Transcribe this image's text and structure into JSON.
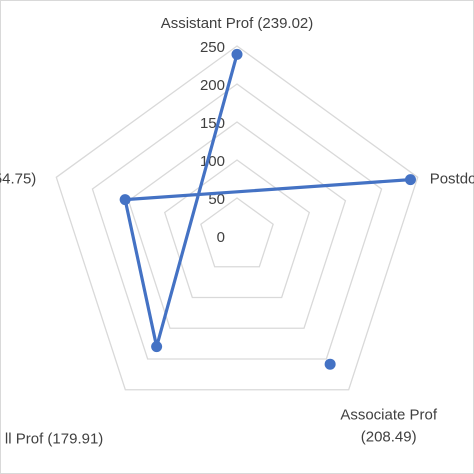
{
  "chart_data": {
    "type": "radar",
    "axes": [
      {
        "label": "Assistant Prof (239.02)",
        "value": 239.02
      },
      {
        "label": "Postdo",
        "value": 240
      },
      {
        "label": "Associate Prof (208.49)",
        "value": 208.49,
        "label_lines": [
          "Associate Prof",
          "(208.49)"
        ]
      },
      {
        "label": "ll Prof (179.91)",
        "value": 179.91
      },
      {
        "label": "54.75)",
        "value": 154.75
      }
    ],
    "path_order": [
      0,
      3,
      4,
      1
    ],
    "ticks": [
      "0",
      "50",
      "100",
      "150",
      "200",
      "250"
    ],
    "rmax": 250,
    "grid": true,
    "colors": {
      "line": "#4472c4",
      "grid": "#d9d9d9",
      "border": "#d9d9d9"
    }
  }
}
